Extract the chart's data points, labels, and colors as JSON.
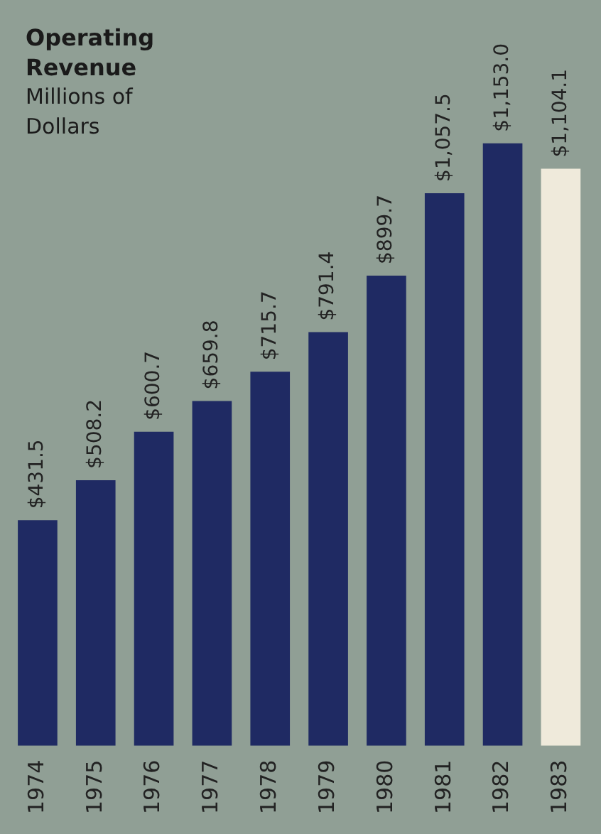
{
  "chart_data": {
    "type": "bar",
    "title": "Operating Revenue",
    "subtitle": "Millions of Dollars",
    "categories": [
      "1974",
      "1975",
      "1976",
      "1977",
      "1978",
      "1979",
      "1980",
      "1981",
      "1982",
      "1983"
    ],
    "values": [
      431.5,
      508.2,
      600.7,
      659.8,
      715.7,
      791.4,
      899.7,
      1057.5,
      1153.0,
      1104.1
    ],
    "value_labels": [
      "$431.5",
      "$508.2",
      "$600.7",
      "$659.8",
      "$715.7",
      "$791.4",
      "$899.7",
      "$1,057.5",
      "$1,153.0",
      "$1,104.1"
    ],
    "colors": [
      "#1f2a63",
      "#1f2a63",
      "#1f2a63",
      "#1f2a63",
      "#1f2a63",
      "#1f2a63",
      "#1f2a63",
      "#1f2a63",
      "#1f2a63",
      "#efeadb"
    ],
    "grid": false,
    "legend": false
  }
}
